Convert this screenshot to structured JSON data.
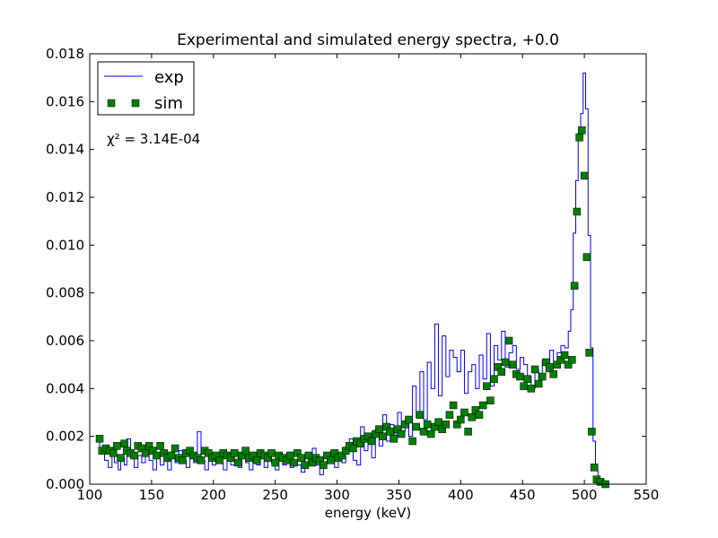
{
  "chart_data": {
    "type": "line",
    "title": "Experimental and simulated energy spectra, +0.0",
    "xlabel": "energy (keV)",
    "ylabel": "",
    "xlim": [
      100,
      550
    ],
    "ylim": [
      0,
      0.018
    ],
    "x_ticks": [
      "100",
      "150",
      "200",
      "250",
      "300",
      "350",
      "400",
      "450",
      "500",
      "550"
    ],
    "y_ticks": [
      "0.000",
      "0.002",
      "0.004",
      "0.006",
      "0.008",
      "0.010",
      "0.012",
      "0.014",
      "0.016",
      "0.018"
    ],
    "grid": false,
    "legend_position": "top-left",
    "annotation": "χ² = 3.14E-04",
    "colors": {
      "exp": "#0000ff",
      "sim": "#007f00"
    },
    "series": [
      {
        "name": "exp",
        "style": "step",
        "points": [
          [
            105,
            0.0018
          ],
          [
            108,
            0.0013
          ],
          [
            112,
            0.001
          ],
          [
            115,
            0.0007
          ],
          [
            118,
            0.0012
          ],
          [
            120,
            0.0009
          ],
          [
            123,
            0.0006
          ],
          [
            125,
            0.0011
          ],
          [
            128,
            0.0008
          ],
          [
            130,
            0.0019
          ],
          [
            133,
            0.0011
          ],
          [
            136,
            0.0007
          ],
          [
            139,
            0.0012
          ],
          [
            142,
            0.0009
          ],
          [
            145,
            0.0013
          ],
          [
            148,
            0.001
          ],
          [
            151,
            0.0006
          ],
          [
            154,
            0.0012
          ],
          [
            157,
            0.0008
          ],
          [
            160,
            0.0011
          ],
          [
            163,
            0.0006
          ],
          [
            166,
            0.0012
          ],
          [
            169,
            0.0009
          ],
          [
            172,
            0.0014
          ],
          [
            175,
            0.001
          ],
          [
            178,
            0.0007
          ],
          [
            181,
            0.0012
          ],
          [
            184,
            0.0009
          ],
          [
            187,
            0.0022
          ],
          [
            190,
            0.001
          ],
          [
            193,
            0.0006
          ],
          [
            196,
            0.0011
          ],
          [
            199,
            0.0008
          ],
          [
            202,
            0.0012
          ],
          [
            205,
            0.0009
          ],
          [
            208,
            0.0006
          ],
          [
            211,
            0.001
          ],
          [
            214,
            0.0008
          ],
          [
            217,
            0.0012
          ],
          [
            220,
            0.0007
          ],
          [
            223,
            0.0011
          ],
          [
            226,
            0.0009
          ],
          [
            229,
            0.0006
          ],
          [
            232,
            0.0013
          ],
          [
            235,
            0.0008
          ],
          [
            238,
            0.0011
          ],
          [
            241,
            0.0007
          ],
          [
            244,
            0.0012
          ],
          [
            247,
            0.0009
          ],
          [
            250,
            0.0006
          ],
          [
            253,
            0.0011
          ],
          [
            256,
            0.0008
          ],
          [
            259,
            0.0012
          ],
          [
            262,
            0.0007
          ],
          [
            265,
            0.001
          ],
          [
            268,
            0.0008
          ],
          [
            271,
            0.0005
          ],
          [
            274,
            0.0012
          ],
          [
            277,
            0.0009
          ],
          [
            280,
            0.0015
          ],
          [
            283,
            0.0008
          ],
          [
            286,
            0.0004
          ],
          [
            289,
            0.0012
          ],
          [
            292,
            0.0009
          ],
          [
            295,
            0.0014
          ],
          [
            298,
            0.0007
          ],
          [
            301,
            0.0012
          ],
          [
            304,
            0.0009
          ],
          [
            307,
            0.0016
          ],
          [
            310,
            0.0019
          ],
          [
            313,
            0.001
          ],
          [
            316,
            0.0008
          ],
          [
            319,
            0.0024
          ],
          [
            322,
            0.0014
          ],
          [
            325,
            0.002
          ],
          [
            328,
            0.0011
          ],
          [
            331,
            0.0023
          ],
          [
            334,
            0.0016
          ],
          [
            337,
            0.0029
          ],
          [
            340,
            0.0018
          ],
          [
            343,
            0.0025
          ],
          [
            346,
            0.0021
          ],
          [
            349,
            0.003
          ],
          [
            352,
            0.0022
          ],
          [
            355,
            0.0027
          ],
          [
            358,
            0.002
          ],
          [
            361,
            0.0041
          ],
          [
            364,
            0.0028
          ],
          [
            367,
            0.0047
          ],
          [
            370,
            0.0027
          ],
          [
            373,
            0.0051
          ],
          [
            376,
            0.004
          ],
          [
            379,
            0.0067
          ],
          [
            382,
            0.0037
          ],
          [
            385,
            0.0062
          ],
          [
            388,
            0.0045
          ],
          [
            391,
            0.0056
          ],
          [
            394,
            0.0053
          ],
          [
            397,
            0.0047
          ],
          [
            400,
            0.0056
          ],
          [
            403,
            0.0038
          ],
          [
            406,
            0.0047
          ],
          [
            409,
            0.005
          ],
          [
            412,
            0.004
          ],
          [
            415,
            0.0054
          ],
          [
            418,
            0.0044
          ],
          [
            421,
            0.0063
          ],
          [
            424,
            0.0041
          ],
          [
            427,
            0.0058
          ],
          [
            430,
            0.0052
          ],
          [
            433,
            0.0064
          ],
          [
            436,
            0.0049
          ],
          [
            439,
            0.0055
          ],
          [
            442,
            0.0058
          ],
          [
            445,
            0.0048
          ],
          [
            448,
            0.0053
          ],
          [
            451,
            0.005
          ],
          [
            454,
            0.0045
          ],
          [
            457,
            0.004
          ],
          [
            460,
            0.0048
          ],
          [
            463,
            0.0044
          ],
          [
            466,
            0.0052
          ],
          [
            469,
            0.0047
          ],
          [
            472,
            0.0056
          ],
          [
            475,
            0.005
          ],
          [
            478,
            0.0055
          ],
          [
            481,
            0.0058
          ],
          [
            484,
            0.0057
          ],
          [
            487,
            0.0064
          ],
          [
            489,
            0.0073
          ],
          [
            491,
            0.0105
          ],
          [
            493,
            0.0127
          ],
          [
            495,
            0.0147
          ],
          [
            497,
            0.0155
          ],
          [
            499,
            0.0172
          ],
          [
            501,
            0.0157
          ],
          [
            503,
            0.0104
          ],
          [
            505,
            0.0057
          ],
          [
            507,
            0.0018
          ],
          [
            509,
            0.0006
          ],
          [
            511,
            0.0002
          ],
          [
            514,
            0.0001
          ],
          [
            517,
            0.0
          ],
          [
            520,
            0.0
          ]
        ]
      },
      {
        "name": "sim",
        "style": "markers",
        "points": [
          [
            108,
            0.0019
          ],
          [
            110,
            0.0014
          ],
          [
            113,
            0.0015
          ],
          [
            116,
            0.0014
          ],
          [
            119,
            0.0013
          ],
          [
            122,
            0.0016
          ],
          [
            125,
            0.0011
          ],
          [
            128,
            0.0017
          ],
          [
            130,
            0.0014
          ],
          [
            133,
            0.0013
          ],
          [
            136,
            0.0012
          ],
          [
            139,
            0.0016
          ],
          [
            142,
            0.0015
          ],
          [
            145,
            0.0013
          ],
          [
            148,
            0.0016
          ],
          [
            151,
            0.0014
          ],
          [
            154,
            0.0012
          ],
          [
            157,
            0.0016
          ],
          [
            160,
            0.0013
          ],
          [
            163,
            0.0011
          ],
          [
            166,
            0.0012
          ],
          [
            169,
            0.0015
          ],
          [
            172,
            0.0011
          ],
          [
            175,
            0.001
          ],
          [
            178,
            0.0013
          ],
          [
            181,
            0.0014
          ],
          [
            184,
            0.0012
          ],
          [
            187,
            0.0011
          ],
          [
            190,
            0.001
          ],
          [
            193,
            0.0014
          ],
          [
            196,
            0.0013
          ],
          [
            199,
            0.0011
          ],
          [
            202,
            0.0012
          ],
          [
            205,
            0.001
          ],
          [
            208,
            0.0013
          ],
          [
            211,
            0.0012
          ],
          [
            214,
            0.0011
          ],
          [
            217,
            0.0013
          ],
          [
            220,
            0.0009
          ],
          [
            223,
            0.0012
          ],
          [
            226,
            0.0014
          ],
          [
            229,
            0.0011
          ],
          [
            232,
            0.0012
          ],
          [
            235,
            0.001
          ],
          [
            238,
            0.0013
          ],
          [
            241,
            0.0012
          ],
          [
            244,
            0.0011
          ],
          [
            247,
            0.0013
          ],
          [
            250,
            0.0009
          ],
          [
            253,
            0.0012
          ],
          [
            256,
            0.0011
          ],
          [
            259,
            0.001
          ],
          [
            262,
            0.0012
          ],
          [
            265,
            0.0009
          ],
          [
            268,
            0.0013
          ],
          [
            271,
            0.0011
          ],
          [
            274,
            0.0008
          ],
          [
            277,
            0.0012
          ],
          [
            280,
            0.0009
          ],
          [
            283,
            0.0011
          ],
          [
            286,
            0.001
          ],
          [
            289,
            0.0008
          ],
          [
            292,
            0.0012
          ],
          [
            295,
            0.001
          ],
          [
            298,
            0.0013
          ],
          [
            301,
            0.0011
          ],
          [
            304,
            0.0012
          ],
          [
            307,
            0.0014
          ],
          [
            310,
            0.0016
          ],
          [
            313,
            0.0015
          ],
          [
            316,
            0.0018
          ],
          [
            319,
            0.0017
          ],
          [
            322,
            0.0019
          ],
          [
            325,
            0.002
          ],
          [
            328,
            0.0018
          ],
          [
            331,
            0.0021
          ],
          [
            334,
            0.0023
          ],
          [
            337,
            0.002
          ],
          [
            340,
            0.0024
          ],
          [
            343,
            0.0022
          ],
          [
            346,
            0.0019
          ],
          [
            349,
            0.0023
          ],
          [
            352,
            0.0021
          ],
          [
            355,
            0.0025
          ],
          [
            358,
            0.0027
          ],
          [
            361,
            0.0018
          ],
          [
            364,
            0.0024
          ],
          [
            367,
            0.0029
          ],
          [
            370,
            0.0022
          ],
          [
            373,
            0.0025
          ],
          [
            376,
            0.0021
          ],
          [
            379,
            0.0024
          ],
          [
            382,
            0.0026
          ],
          [
            385,
            0.0023
          ],
          [
            388,
            0.0025
          ],
          [
            391,
            0.0029
          ],
          [
            394,
            0.0033
          ],
          [
            397,
            0.0025
          ],
          [
            400,
            0.0027
          ],
          [
            403,
            0.003
          ],
          [
            406,
            0.0022
          ],
          [
            409,
            0.0028
          ],
          [
            412,
            0.0031
          ],
          [
            415,
            0.0029
          ],
          [
            418,
            0.0033
          ],
          [
            421,
            0.0041
          ],
          [
            424,
            0.0035
          ],
          [
            427,
            0.0044
          ],
          [
            430,
            0.0049
          ],
          [
            433,
            0.0047
          ],
          [
            436,
            0.0051
          ],
          [
            439,
            0.006
          ],
          [
            442,
            0.005
          ],
          [
            445,
            0.0046
          ],
          [
            448,
            0.0045
          ],
          [
            451,
            0.0041
          ],
          [
            454,
            0.0044
          ],
          [
            457,
            0.004
          ],
          [
            460,
            0.0048
          ],
          [
            463,
            0.0042
          ],
          [
            466,
            0.0045
          ],
          [
            469,
            0.0051
          ],
          [
            472,
            0.0049
          ],
          [
            475,
            0.0046
          ],
          [
            478,
            0.005
          ],
          [
            481,
            0.0052
          ],
          [
            484,
            0.0054
          ],
          [
            487,
            0.005
          ],
          [
            490,
            0.0052
          ],
          [
            492,
            0.0083
          ],
          [
            494,
            0.0114
          ],
          [
            496,
            0.0145
          ],
          [
            498,
            0.0148
          ],
          [
            500,
            0.0129
          ],
          [
            502,
            0.0095
          ],
          [
            504,
            0.0055
          ],
          [
            506,
            0.0022
          ],
          [
            508,
            0.0007
          ],
          [
            510,
            0.0002
          ],
          [
            513,
            0.0001
          ],
          [
            517,
            0.0
          ]
        ]
      }
    ]
  }
}
